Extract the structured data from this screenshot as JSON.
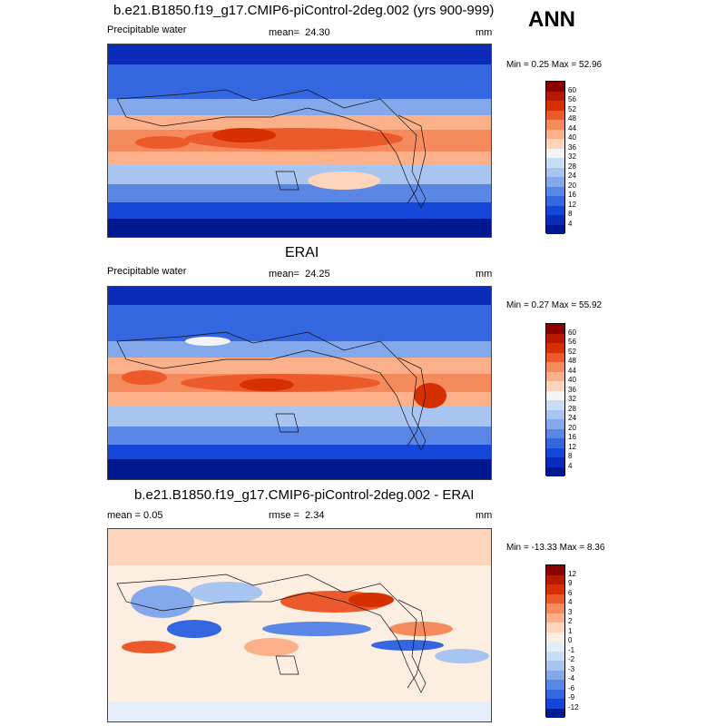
{
  "season": "ANN",
  "panels": [
    {
      "title": "b.e21.B1850.f19_g17.CMIP6-piControl-2deg.002 (yrs 900-999)",
      "left_label": "Precipitable water",
      "stat_label": "mean=",
      "stat_value": "24.30",
      "units": "mm",
      "min_max": "Min =   0.25 Max =  52.96"
    },
    {
      "title": "ERAI",
      "left_label": "Precipitable water",
      "stat_label": "mean=",
      "stat_value": "24.25",
      "units": "mm",
      "min_max": "Min =   0.27 Max =  55.92"
    },
    {
      "title": "b.e21.B1850.f19_g17.CMIP6-piControl-2deg.002 - ERAI",
      "left_label": "mean =     0.05",
      "stat_label": "rmse =",
      "stat_value": "2.34",
      "units": "mm",
      "min_max": "Min = -13.33 Max =   8.36"
    }
  ],
  "colorbars": {
    "field": {
      "labels": [
        "60",
        "56",
        "52",
        "48",
        "44",
        "40",
        "36",
        "32",
        "28",
        "24",
        "20",
        "16",
        "12",
        "8",
        "4"
      ],
      "colors": [
        "#8b0000",
        "#b51a00",
        "#d73000",
        "#ec5a2c",
        "#f58a5c",
        "#fbb08a",
        "#fdd4bc",
        "#f4f4f4",
        "#c8dcf4",
        "#a8c4f0",
        "#84a8ec",
        "#5a86e6",
        "#3466e0",
        "#1446d8",
        "#0a2cb8",
        "#001890"
      ]
    },
    "diff": {
      "labels": [
        "12",
        "9",
        "6",
        "4",
        "3",
        "2",
        "1",
        "0",
        "-1",
        "-2",
        "-3",
        "-4",
        "-6",
        "-9",
        "-12"
      ],
      "colors": [
        "#8b0000",
        "#b51a00",
        "#d73000",
        "#ec5a2c",
        "#f58a5c",
        "#fbb08a",
        "#fdd4bc",
        "#fdeee2",
        "#e4eefb",
        "#c8dcf4",
        "#a8c4f0",
        "#84a8ec",
        "#5a86e6",
        "#3466e0",
        "#1446d8",
        "#001890"
      ]
    }
  }
}
